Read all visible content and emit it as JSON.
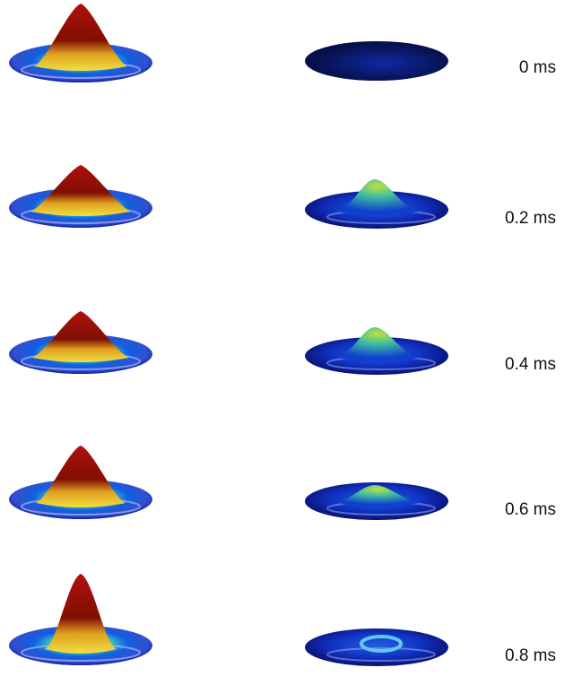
{
  "labels": [
    "0 ms",
    "0.2 ms",
    "0.4 ms",
    "0.6 ms",
    "0.8 ms"
  ]
}
